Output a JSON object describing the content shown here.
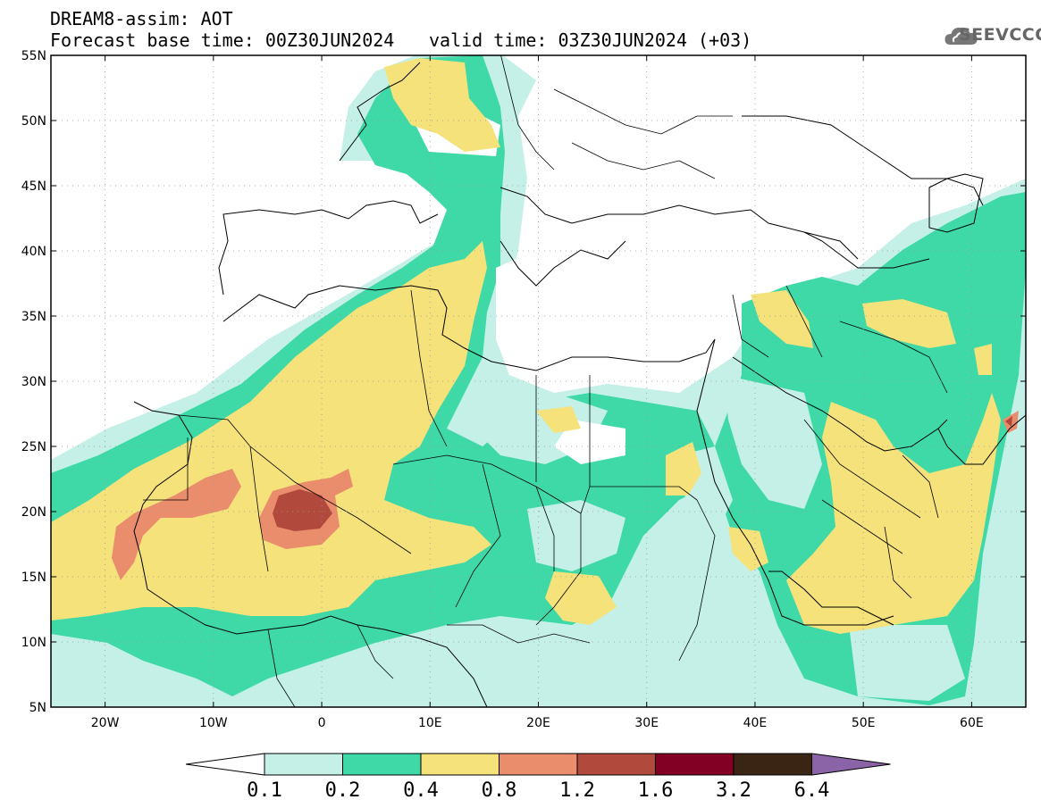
{
  "header": {
    "title": "DREAM8-assim: AOT",
    "forecast": "Forecast base time: 00Z30JUN2024",
    "valid": "valid time: 03Z30JUN2024 (+03)"
  },
  "logo": {
    "text": "SEEVCCC",
    "icon": "cloud-icon"
  },
  "map": {
    "lat_labels": [
      "55N",
      "50N",
      "45N",
      "40N",
      "35N",
      "30N",
      "25N",
      "20N",
      "15N",
      "10N",
      "5N"
    ],
    "lon_labels": [
      "20W",
      "10W",
      "0",
      "10E",
      "20E",
      "30E",
      "40E",
      "50E",
      "60E"
    ],
    "lat_range": [
      5,
      55
    ],
    "lon_range": [
      -25,
      65
    ]
  },
  "colorbar": {
    "levels": [
      "0.1",
      "0.2",
      "0.4",
      "0.8",
      "1.2",
      "1.6",
      "3.2",
      "6.4"
    ],
    "colors": [
      "#ffffff",
      "#c4f0e8",
      "#3fd9a8",
      "#f5e27a",
      "#e98d6d",
      "#b1493c",
      "#820024",
      "#3a2514",
      "#8b64a8"
    ]
  },
  "colors": {
    "c1": "#c4f0e8",
    "c2": "#3fd9a8",
    "c3": "#f5e27a",
    "c4": "#e98d6d",
    "c5": "#b1493c"
  }
}
